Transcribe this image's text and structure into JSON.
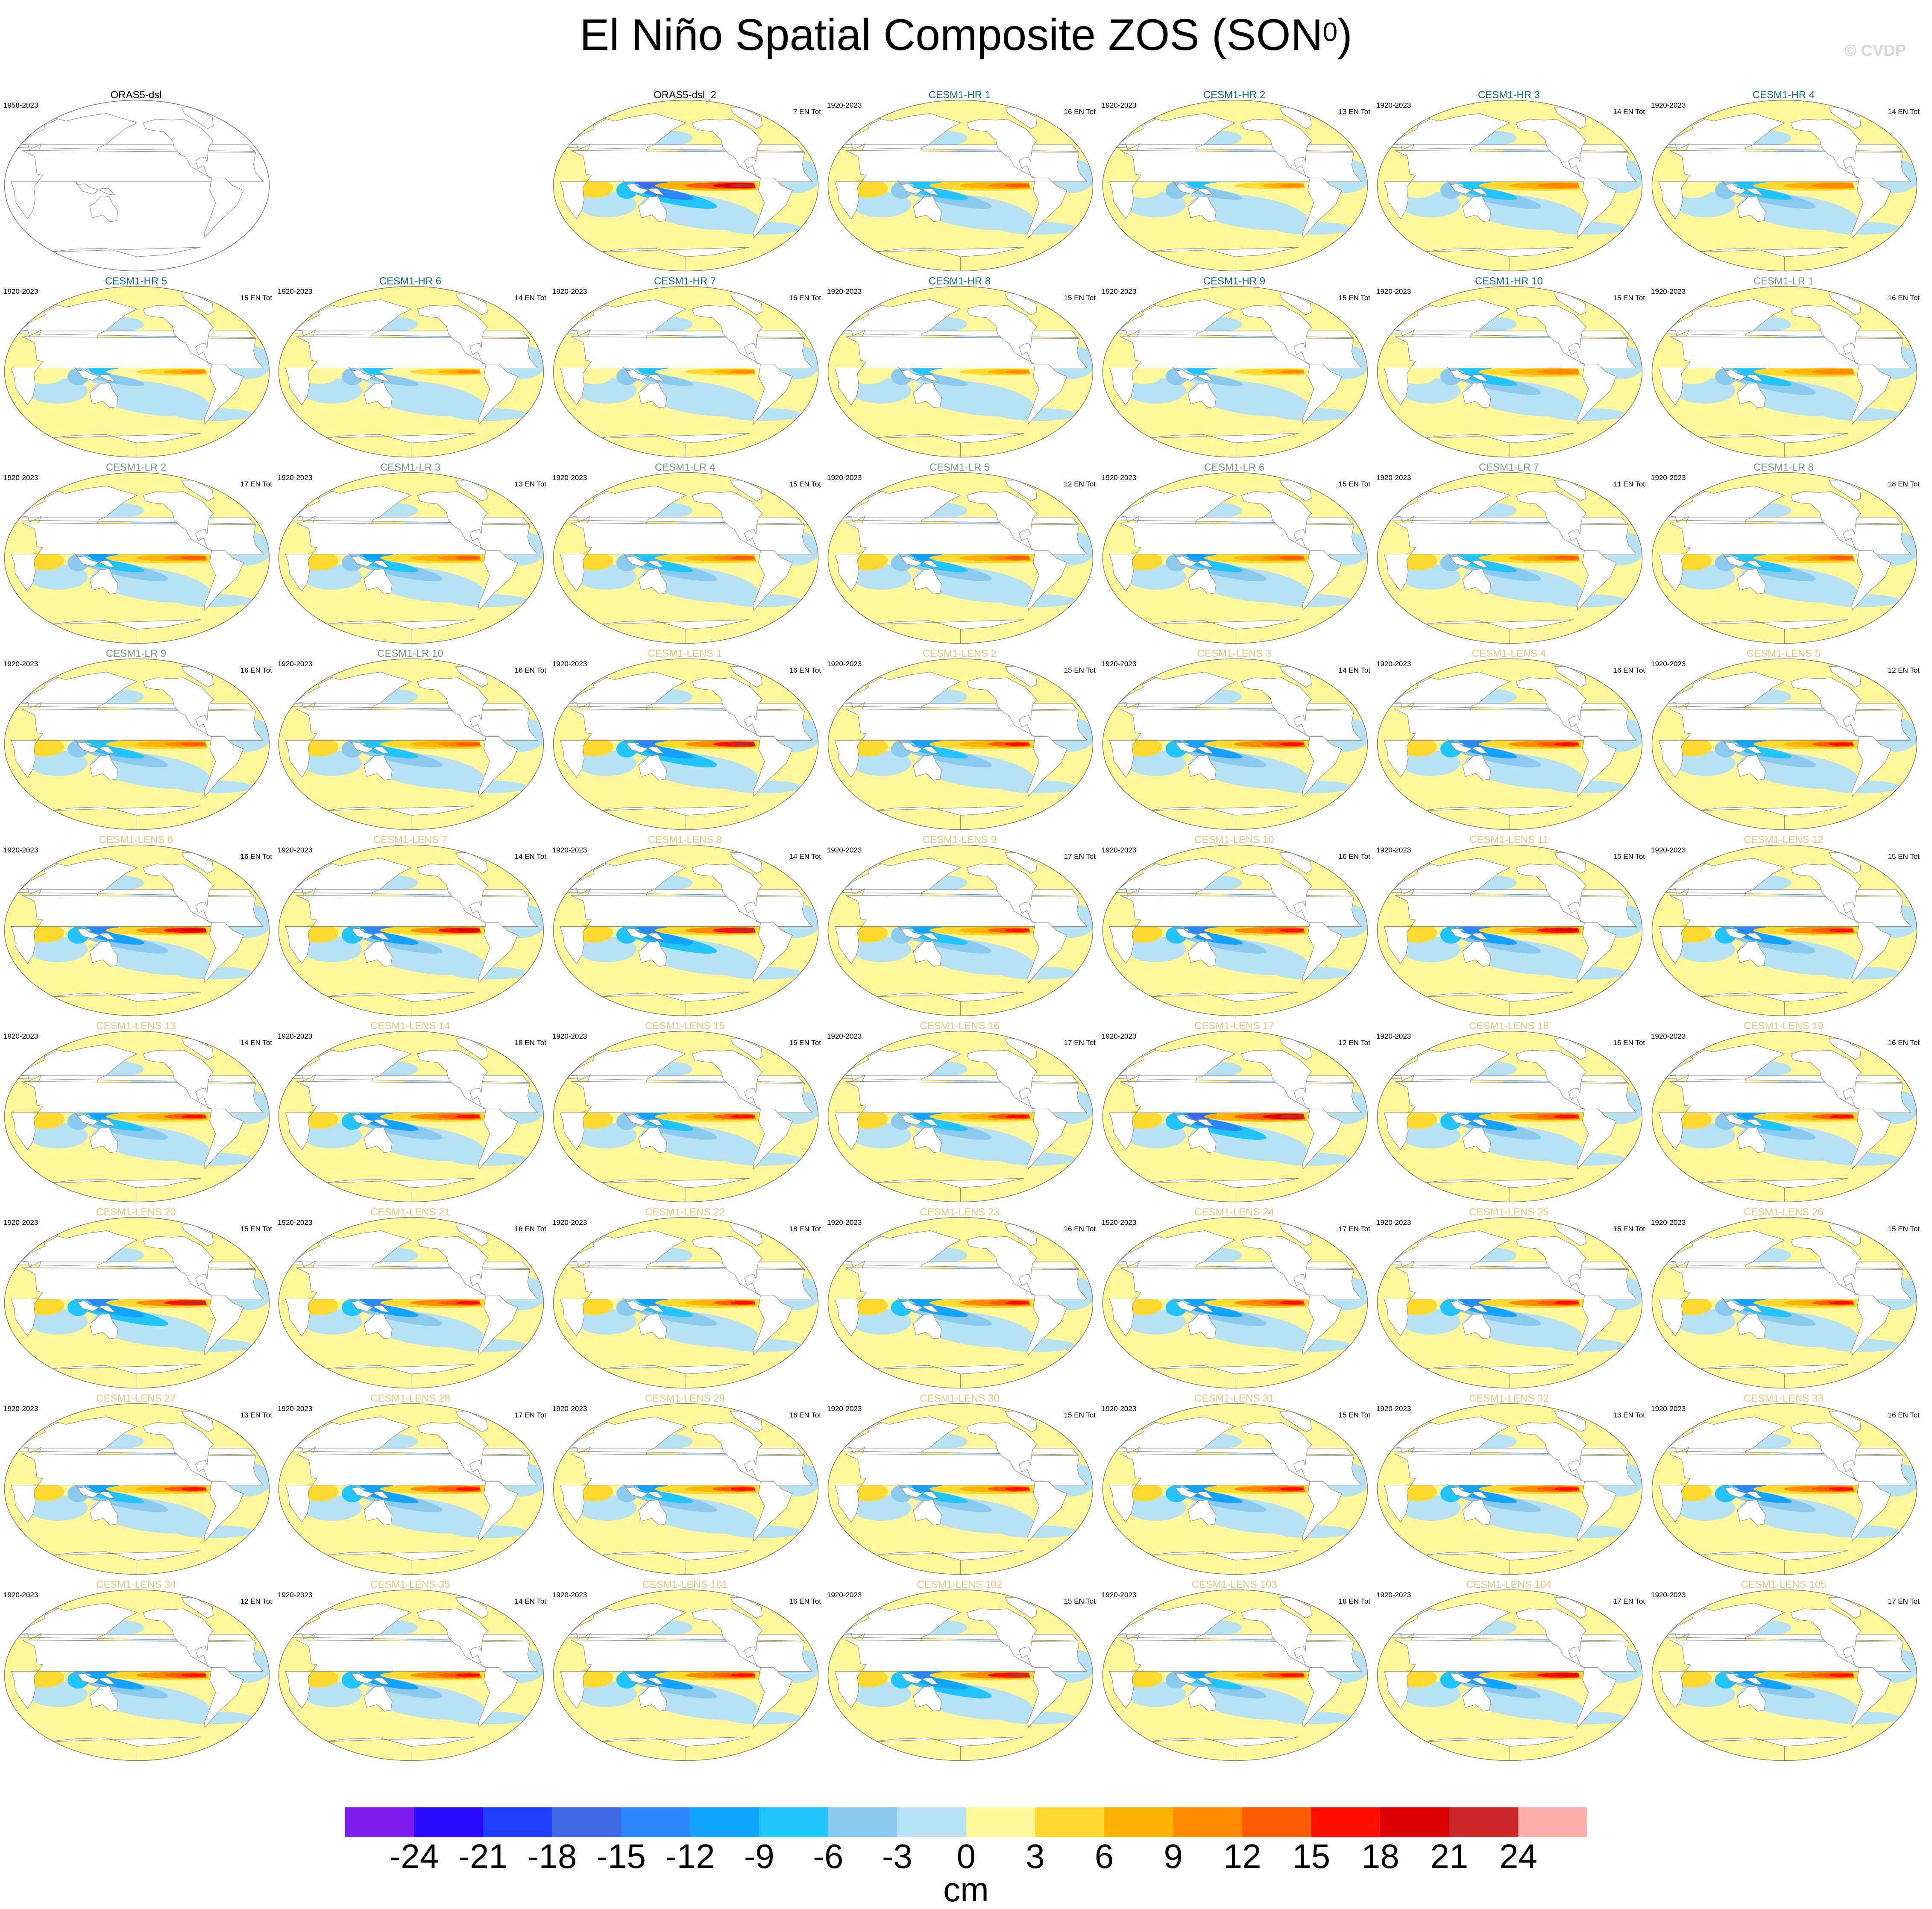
{
  "figure": {
    "title": "El Niño Spatial Composite ZOS (SON",
    "title_superscript": "0",
    "title_close": ")",
    "watermark": "© CVDP"
  },
  "chart_data": {
    "type": "heatmap",
    "description_kind": "grid of global map panels, filled contours of sea surface height anomaly",
    "units": "cm",
    "colorbar_levels": [
      -24,
      -21,
      -18,
      -15,
      -12,
      -9,
      -6,
      -3,
      0,
      3,
      6,
      9,
      12,
      15,
      18,
      21,
      24
    ],
    "colorbar_colors": [
      "#7f1fef",
      "#2a0dff",
      "#1f3dff",
      "#3f6ae6",
      "#2986ff",
      "#12a2ff",
      "#20c4ff",
      "#8bc9ee",
      "#b7e2f3",
      "#fff79a",
      "#ffd92e",
      "#ffb300",
      "#ff8a00",
      "#ff5a00",
      "#ff0e00",
      "#dd0000",
      "#c72626",
      "#ffacac"
    ],
    "panels": [
      {
        "title": "ORAS5-dsl",
        "years": "1958-2023",
        "count": "",
        "title_color": "#000000",
        "empty": true
      },
      null,
      {
        "title": "ORAS5-dsl_2",
        "years": "",
        "count": "7 EN Tot",
        "title_color": "#000000",
        "amp": 1.0
      },
      {
        "title": "CESM1-HR 1",
        "years": "1920-2023",
        "count": "16 EN Tot",
        "title_color": "#1a6c8c",
        "amp": 0.55
      },
      {
        "title": "CESM1-HR 2",
        "years": "1920-2023",
        "count": "13 EN Tot",
        "title_color": "#1a6c8c",
        "amp": 0.45
      },
      {
        "title": "CESM1-HR 3",
        "years": "1920-2023",
        "count": "14 EN Tot",
        "title_color": "#1a6c8c",
        "amp": 0.5
      },
      {
        "title": "CESM1-HR 4",
        "years": "1920-2023",
        "count": "14 EN Tot",
        "title_color": "#1a6c8c",
        "amp": 0.5
      },
      {
        "title": "CESM1-HR 5",
        "years": "1920-2023",
        "count": "15 EN Tot",
        "title_color": "#1a6c8c",
        "amp": 0.45
      },
      {
        "title": "CESM1-HR 6",
        "years": "1920-2023",
        "count": "14 EN Tot",
        "title_color": "#1a6c8c",
        "amp": 0.45
      },
      {
        "title": "CESM1-HR 7",
        "years": "1920-2023",
        "count": "16 EN Tot",
        "title_color": "#1a6c8c",
        "amp": 0.45
      },
      {
        "title": "CESM1-HR 8",
        "years": "1920-2023",
        "count": "15 EN Tot",
        "title_color": "#1a6c8c",
        "amp": 0.45
      },
      {
        "title": "CESM1-HR 9",
        "years": "1920-2023",
        "count": "15 EN Tot",
        "title_color": "#1a6c8c",
        "amp": 0.45
      },
      {
        "title": "CESM1-HR 10",
        "years": "1920-2023",
        "count": "15 EN Tot",
        "title_color": "#1a6c8c",
        "amp": 0.5
      },
      {
        "title": "CESM1-LR 1",
        "years": "1920-2023",
        "count": "16 EN Tot",
        "title_color": "#7a9a86",
        "amp": 0.5
      },
      {
        "title": "CESM1-LR 2",
        "years": "1920-2023",
        "count": "17 EN Tot",
        "title_color": "#7a9a86",
        "amp": 0.6
      },
      {
        "title": "CESM1-LR 3",
        "years": "1920-2023",
        "count": "13 EN Tot",
        "title_color": "#7a9a86",
        "amp": 0.65
      },
      {
        "title": "CESM1-LR 4",
        "years": "1920-2023",
        "count": "15 EN Tot",
        "title_color": "#7a9a86",
        "amp": 0.55
      },
      {
        "title": "CESM1-LR 5",
        "years": "1920-2023",
        "count": "12 EN Tot",
        "title_color": "#7a9a86",
        "amp": 0.6
      },
      {
        "title": "CESM1-LR 6",
        "years": "1920-2023",
        "count": "15 EN Tot",
        "title_color": "#7a9a86",
        "amp": 0.6
      },
      {
        "title": "CESM1-LR 7",
        "years": "1920-2023",
        "count": "11 EN Tot",
        "title_color": "#7a9a86",
        "amp": 0.55
      },
      {
        "title": "CESM1-LR 8",
        "years": "1920-2023",
        "count": "18 EN Tot",
        "title_color": "#7a9a86",
        "amp": 0.55
      },
      {
        "title": "CESM1-LR 9",
        "years": "1920-2023",
        "count": "16 EN Tot",
        "title_color": "#7a9a86",
        "amp": 0.55
      },
      {
        "title": "CESM1-LR 10",
        "years": "1920-2023",
        "count": "16 EN Tot",
        "title_color": "#7a9a86",
        "amp": 0.55
      },
      {
        "title": "CESM1-LENS 1",
        "years": "1920-2023",
        "count": "16 EN Tot",
        "title_color": "#e8c97a",
        "amp": 0.95
      },
      {
        "title": "CESM1-LENS 2",
        "years": "1920-2023",
        "count": "15 EN Tot",
        "title_color": "#e8c97a",
        "amp": 0.7
      },
      {
        "title": "CESM1-LENS 3",
        "years": "1920-2023",
        "count": "14 EN Tot",
        "title_color": "#e8c97a",
        "amp": 0.75
      },
      {
        "title": "CESM1-LENS 4",
        "years": "1920-2023",
        "count": "16 EN Tot",
        "title_color": "#e8c97a",
        "amp": 0.8
      },
      {
        "title": "CESM1-LENS 5",
        "years": "1920-2023",
        "count": "12 EN Tot",
        "title_color": "#e8c97a",
        "amp": 0.7
      },
      {
        "title": "CESM1-LENS 6",
        "years": "1920-2023",
        "count": "16 EN Tot",
        "title_color": "#e8c97a",
        "amp": 0.85
      },
      {
        "title": "CESM1-LENS 7",
        "years": "1920-2023",
        "count": "14 EN Tot",
        "title_color": "#e8c97a",
        "amp": 0.9
      },
      {
        "title": "CESM1-LENS 8",
        "years": "1920-2023",
        "count": "14 EN Tot",
        "title_color": "#e8c97a",
        "amp": 0.95
      },
      {
        "title": "CESM1-LENS 9",
        "years": "1920-2023",
        "count": "17 EN Tot",
        "title_color": "#e8c97a",
        "amp": 0.7
      },
      {
        "title": "CESM1-LENS 10",
        "years": "1920-2023",
        "count": "16 EN Tot",
        "title_color": "#e8c97a",
        "amp": 0.8
      },
      {
        "title": "CESM1-LENS 11",
        "years": "1920-2023",
        "count": "15 EN Tot",
        "title_color": "#e8c97a",
        "amp": 0.85
      },
      {
        "title": "CESM1-LENS 12",
        "years": "1920-2023",
        "count": "15 EN Tot",
        "title_color": "#e8c97a",
        "amp": 0.8
      },
      {
        "title": "CESM1-LENS 13",
        "years": "1920-2023",
        "count": "14 EN Tot",
        "title_color": "#e8c97a",
        "amp": 0.7
      },
      {
        "title": "CESM1-LENS 14",
        "years": "1920-2023",
        "count": "18 EN Tot",
        "title_color": "#e8c97a",
        "amp": 0.75
      },
      {
        "title": "CESM1-LENS 15",
        "years": "1920-2023",
        "count": "16 EN Tot",
        "title_color": "#e8c97a",
        "amp": 0.7
      },
      {
        "title": "CESM1-LENS 16",
        "years": "1920-2023",
        "count": "17 EN Tot",
        "title_color": "#e8c97a",
        "amp": 0.7
      },
      {
        "title": "CESM1-LENS 17",
        "years": "1920-2023",
        "count": "12 EN Tot",
        "title_color": "#e8c97a",
        "amp": 1.0
      },
      {
        "title": "CESM1-LENS 18",
        "years": "1920-2023",
        "count": "16 EN Tot",
        "title_color": "#e8c97a",
        "amp": 0.75
      },
      {
        "title": "CESM1-LENS 19",
        "years": "1920-2023",
        "count": "16 EN Tot",
        "title_color": "#e8c97a",
        "amp": 0.7
      },
      {
        "title": "CESM1-LENS 20",
        "years": "1920-2023",
        "count": "15 EN Tot",
        "title_color": "#e8c97a",
        "amp": 0.95
      },
      {
        "title": "CESM1-LENS 21",
        "years": "1920-2023",
        "count": "16 EN Tot",
        "title_color": "#e8c97a",
        "amp": 0.8
      },
      {
        "title": "CESM1-LENS 22",
        "years": "1920-2023",
        "count": "18 EN Tot",
        "title_color": "#e8c97a",
        "amp": 0.7
      },
      {
        "title": "CESM1-LENS 23",
        "years": "1920-2023",
        "count": "16 EN Tot",
        "title_color": "#e8c97a",
        "amp": 0.75
      },
      {
        "title": "CESM1-LENS 24",
        "years": "1920-2023",
        "count": "17 EN Tot",
        "title_color": "#e8c97a",
        "amp": 0.75
      },
      {
        "title": "CESM1-LENS 25",
        "years": "1920-2023",
        "count": "15 EN Tot",
        "title_color": "#e8c97a",
        "amp": 0.8
      },
      {
        "title": "CESM1-LENS 26",
        "years": "1920-2023",
        "count": "15 EN Tot",
        "title_color": "#e8c97a",
        "amp": 0.7
      },
      {
        "title": "CESM1-LENS 27",
        "years": "1920-2023",
        "count": "13 EN Tot",
        "title_color": "#e8c97a",
        "amp": 0.7
      },
      {
        "title": "CESM1-LENS 28",
        "years": "1920-2023",
        "count": "17 EN Tot",
        "title_color": "#e8c97a",
        "amp": 0.75
      },
      {
        "title": "CESM1-LENS 29",
        "years": "1920-2023",
        "count": "16 EN Tot",
        "title_color": "#e8c97a",
        "amp": 0.7
      },
      {
        "title": "CESM1-LENS 30",
        "years": "1920-2023",
        "count": "15 EN Tot",
        "title_color": "#e8c97a",
        "amp": 0.7
      },
      {
        "title": "CESM1-LENS 31",
        "years": "1920-2023",
        "count": "15 EN Tot",
        "title_color": "#e8c97a",
        "amp": 0.75
      },
      {
        "title": "CESM1-LENS 32",
        "years": "1920-2023",
        "count": "13 EN Tot",
        "title_color": "#e8c97a",
        "amp": 0.75
      },
      {
        "title": "CESM1-LENS 33",
        "years": "1920-2023",
        "count": "16 EN Tot",
        "title_color": "#e8c97a",
        "amp": 0.8
      },
      {
        "title": "CESM1-LENS 34",
        "years": "1920-2023",
        "count": "12 EN Tot",
        "title_color": "#e8c97a",
        "amp": 0.75
      },
      {
        "title": "CESM1-LENS 35",
        "years": "1920-2023",
        "count": "14 EN Tot",
        "title_color": "#e8c97a",
        "amp": 0.75
      },
      {
        "title": "CESM1-LENS 101",
        "years": "1920-2023",
        "count": "16 EN Tot",
        "title_color": "#e8c97a",
        "amp": 0.75
      },
      {
        "title": "CESM1-LENS 102",
        "years": "1920-2023",
        "count": "15 EN Tot",
        "title_color": "#e8c97a",
        "amp": 0.95
      },
      {
        "title": "CESM1-LENS 103",
        "years": "1920-2023",
        "count": "18 EN Tot",
        "title_color": "#e8c97a",
        "amp": 0.7
      },
      {
        "title": "CESM1-LENS 104",
        "years": "1920-2023",
        "count": "17 EN Tot",
        "title_color": "#e8c97a",
        "amp": 0.85
      },
      {
        "title": "CESM1-LENS 105",
        "years": "1920-2023",
        "count": "17 EN Tot",
        "title_color": "#e8c97a",
        "amp": 0.75
      }
    ]
  }
}
